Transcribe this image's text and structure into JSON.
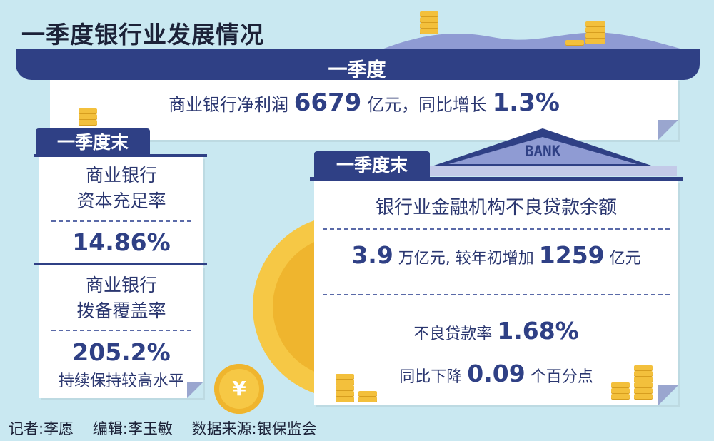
{
  "title": "一季度银行业发展情况",
  "band": {
    "label": "一季度"
  },
  "net_profit": {
    "prefix": "商业银行净利润",
    "value": "6679",
    "unit_mid": "亿元，同比增长",
    "growth": "1.3%"
  },
  "left_panel": {
    "tab": "一季度末",
    "capital": {
      "line1": "商业银行",
      "line2": "资本充足率",
      "value": "14.86%"
    },
    "provision": {
      "line1": "商业银行",
      "line2": "拨备覆盖率",
      "value": "205.2%",
      "note": "持续保持较高水平"
    }
  },
  "right_panel": {
    "tab": "一季度末",
    "bank_sign": "BANK",
    "heading": "银行业金融机构不良贷款余额",
    "balance": {
      "value": "3.9",
      "unit": "万亿元, 较年初增加",
      "increase": "1259",
      "increase_unit": "亿元"
    },
    "ratio": {
      "label": "不良贷款率",
      "value": "1.68%"
    },
    "decline": {
      "label": "同比下降",
      "value": "0.09",
      "unit": "个百分点"
    }
  },
  "coin_symbol": "¥",
  "footer": {
    "reporter": "记者:李愿",
    "editor": "编辑:李玉敏",
    "source": "数据来源:银保监会"
  },
  "colors": {
    "navy": "#2f4085",
    "background": "#c9e8f1",
    "gold": "#f3c03c"
  }
}
